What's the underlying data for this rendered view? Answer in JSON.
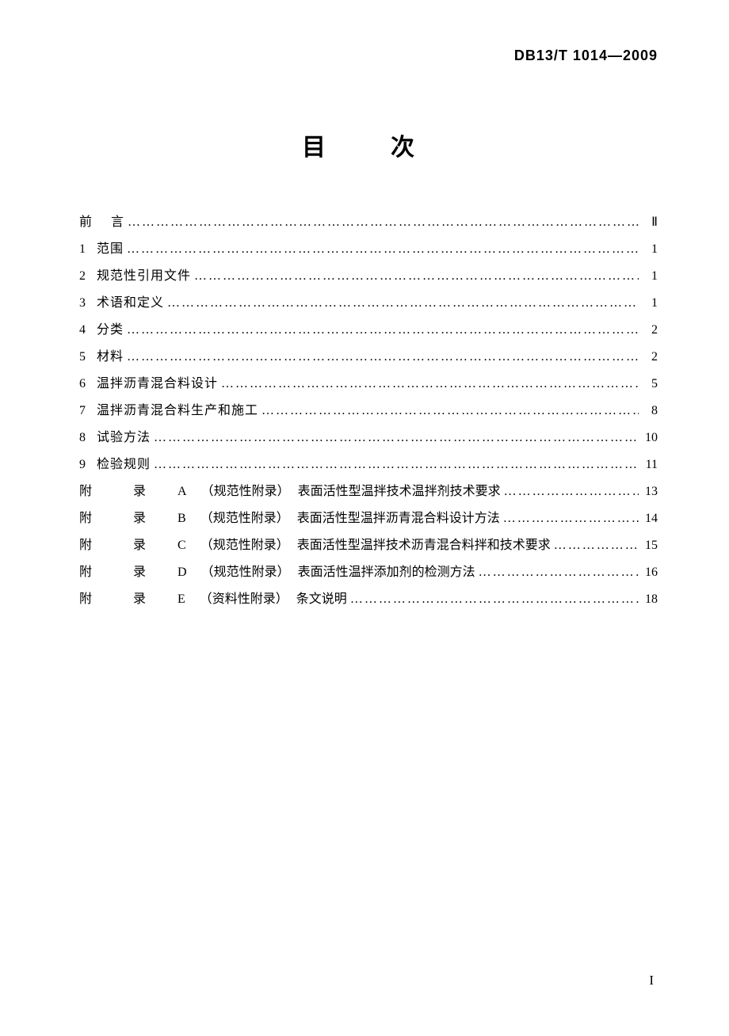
{
  "header": {
    "standard_code": "DB13/T 1014—2009"
  },
  "title": "目　次",
  "toc": {
    "preface": {
      "num": "前",
      "label": "言",
      "page": "Ⅱ"
    },
    "sections": [
      {
        "num": "1",
        "label": "范围",
        "page": "1"
      },
      {
        "num": "2",
        "label": "规范性引用文件",
        "page": "1"
      },
      {
        "num": "3",
        "label": "术语和定义",
        "page": "1"
      },
      {
        "num": "4",
        "label": "分类",
        "page": "2"
      },
      {
        "num": "5",
        "label": "材料",
        "page": "2"
      },
      {
        "num": "6",
        "label": "温拌沥青混合料设计",
        "page": "5"
      },
      {
        "num": "7",
        "label": "温拌沥青混合料生产和施工",
        "page": "8"
      },
      {
        "num": "8",
        "label": "试验方法",
        "page": "10"
      },
      {
        "num": "9",
        "label": "检验规则",
        "page": "11"
      }
    ],
    "appendices": [
      {
        "prefix": "附　录 A",
        "type": "（规范性附录）",
        "title": "表面活性型温拌技术温拌剂技术要求",
        "page": "13"
      },
      {
        "prefix": "附　录 B",
        "type": "（规范性附录）",
        "title": "表面活性型温拌沥青混合料设计方法",
        "page": "14"
      },
      {
        "prefix": "附　录 C",
        "type": "（规范性附录）",
        "title": "表面活性型温拌技术沥青混合料拌和技术要求",
        "page": "15"
      },
      {
        "prefix": "附　录 D",
        "type": "（规范性附录）",
        "title": "表面活性温拌添加剂的检测方法",
        "page": "16"
      },
      {
        "prefix": "附　录 E",
        "type": "（资料性附录）",
        "title": "条文说明",
        "page": "18"
      }
    ]
  },
  "dots": "……………………………………………………………………………………………………………………………………………………",
  "page_number": "I",
  "style": {
    "background_color": "#ffffff",
    "text_color": "#000000",
    "title_fontsize": 30,
    "body_fontsize": 16,
    "header_fontsize": 18
  }
}
